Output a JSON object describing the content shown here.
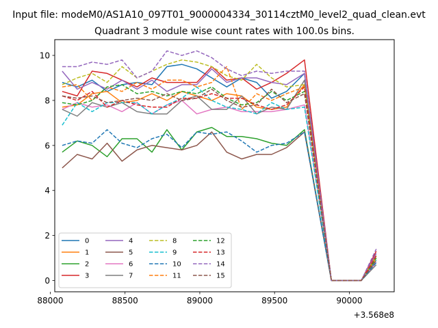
{
  "chart_data": {
    "type": "line",
    "title": "Quadrant 3 module wise count rates with 100.0s bins.",
    "suptitle": "Input file: modeM0/AS1A10_097T01_9000004334_30114cztM0_level2_quad_clean.evt",
    "xlabel": "",
    "ylabel": "",
    "x_offset_label": "+3.568e8",
    "xlim": [
      88030,
      90300
    ],
    "ylim": [
      -0.5,
      10.7
    ],
    "xticks": [
      88000,
      88500,
      89000,
      89500,
      90000
    ],
    "xtick_labels": [
      "88000",
      "88500",
      "89000",
      "89500",
      "90000"
    ],
    "yticks": [
      0,
      2,
      4,
      6,
      8,
      10
    ],
    "ytick_labels": [
      "0",
      "2",
      "4",
      "6",
      "8",
      "10"
    ],
    "grid": false,
    "legend": {
      "placement": "lower-left",
      "ncol": 4
    },
    "x": [
      88080,
      88180,
      88280,
      88380,
      88480,
      88580,
      88680,
      88780,
      88880,
      88980,
      89080,
      89180,
      89280,
      89380,
      89480,
      89580,
      89700,
      89880,
      89980,
      90080,
      90180
    ],
    "series": [
      {
        "name": "0",
        "color": "#1f77b4",
        "style": "solid",
        "values": [
          8.8,
          8.6,
          8.9,
          8.4,
          8.7,
          8.8,
          8.7,
          9.5,
          9.6,
          9.4,
          9.0,
          8.6,
          9.0,
          8.8,
          8.1,
          8.4,
          9.2,
          0,
          0,
          0,
          0.8
        ]
      },
      {
        "name": "1",
        "color": "#ff7f0e",
        "style": "solid",
        "values": [
          7.7,
          7.8,
          8.3,
          8.4,
          7.9,
          8.0,
          8.3,
          8.0,
          8.4,
          8.2,
          8.0,
          8.3,
          8.2,
          7.7,
          7.6,
          7.7,
          8.7,
          0,
          0,
          0,
          1.0
        ]
      },
      {
        "name": "2",
        "color": "#2ca02c",
        "style": "solid",
        "values": [
          5.7,
          6.2,
          6.0,
          5.5,
          6.3,
          6.3,
          5.7,
          6.7,
          5.8,
          6.6,
          6.8,
          6.4,
          6.4,
          6.3,
          6.1,
          6.0,
          6.7,
          0,
          0,
          0,
          1.1
        ]
      },
      {
        "name": "3",
        "color": "#d62728",
        "style": "solid",
        "values": [
          8.4,
          8.2,
          9.3,
          9.2,
          8.9,
          8.6,
          9.0,
          8.8,
          8.8,
          8.8,
          9.5,
          8.9,
          9.0,
          8.5,
          8.8,
          9.2,
          9.8,
          0,
          0,
          0,
          1.3
        ]
      },
      {
        "name": "4",
        "color": "#9467bd",
        "style": "solid",
        "values": [
          9.3,
          8.5,
          8.8,
          8.5,
          8.9,
          8.5,
          8.9,
          8.4,
          8.7,
          8.7,
          9.4,
          8.8,
          9.0,
          9.0,
          8.8,
          8.7,
          9.2,
          0,
          0,
          0,
          1.2
        ]
      },
      {
        "name": "5",
        "color": "#8c564b",
        "style": "solid",
        "values": [
          5.0,
          5.6,
          5.4,
          6.1,
          5.3,
          5.8,
          6.0,
          5.9,
          5.8,
          6.0,
          6.6,
          5.7,
          5.4,
          5.6,
          5.6,
          5.9,
          6.6,
          0,
          0,
          0,
          0.9
        ]
      },
      {
        "name": "6",
        "color": "#e377c2",
        "style": "solid",
        "values": [
          7.6,
          7.9,
          7.7,
          7.8,
          7.5,
          7.9,
          7.4,
          7.8,
          8.0,
          7.4,
          7.6,
          7.7,
          7.5,
          7.5,
          7.5,
          7.6,
          7.8,
          0,
          0,
          0,
          0.8
        ]
      },
      {
        "name": "7",
        "color": "#7f7f7f",
        "style": "solid",
        "values": [
          7.6,
          7.3,
          7.9,
          7.7,
          7.9,
          7.5,
          7.4,
          7.4,
          8.0,
          8.2,
          7.6,
          7.6,
          8.2,
          7.4,
          7.7,
          7.6,
          8.9,
          0,
          0,
          0,
          0.7
        ]
      },
      {
        "name": "8",
        "color": "#bcbd22",
        "style": "dashed",
        "values": [
          8.7,
          9.0,
          9.2,
          8.8,
          9.5,
          9.0,
          9.3,
          9.6,
          9.8,
          9.7,
          9.5,
          9.1,
          8.9,
          9.6,
          9.0,
          8.6,
          8.7,
          0,
          0,
          0,
          1.1
        ]
      },
      {
        "name": "9",
        "color": "#17becf",
        "style": "dashed",
        "values": [
          6.9,
          7.9,
          7.5,
          7.9,
          7.9,
          7.9,
          7.4,
          7.8,
          8.1,
          8.6,
          8.0,
          7.7,
          7.6,
          7.4,
          7.9,
          7.6,
          7.7,
          0,
          0,
          0,
          0.9
        ]
      },
      {
        "name": "10",
        "color": "#1f77b4",
        "style": "dashed",
        "values": [
          6.0,
          6.2,
          6.1,
          6.7,
          6.1,
          5.9,
          6.3,
          6.5,
          5.9,
          6.6,
          6.5,
          6.6,
          6.2,
          5.7,
          6.0,
          6.1,
          6.6,
          0,
          0,
          0,
          0.8
        ]
      },
      {
        "name": "11",
        "color": "#ff7f0e",
        "style": "dashed",
        "values": [
          8.6,
          8.7,
          8.0,
          8.6,
          8.4,
          8.8,
          8.5,
          8.9,
          8.9,
          8.6,
          8.8,
          9.5,
          7.6,
          8.3,
          8.0,
          8.3,
          8.6,
          0,
          0,
          0,
          1.1
        ]
      },
      {
        "name": "12",
        "color": "#2ca02c",
        "style": "dashed",
        "values": [
          7.9,
          7.8,
          8.0,
          8.6,
          8.7,
          8.3,
          8.4,
          8.2,
          8.4,
          8.3,
          8.6,
          8.1,
          7.8,
          7.9,
          8.4,
          8.0,
          8.4,
          0,
          0,
          0,
          1.0
        ]
      },
      {
        "name": "13",
        "color": "#d62728",
        "style": "dashed",
        "values": [
          8.2,
          8.0,
          8.4,
          7.7,
          8.0,
          7.8,
          7.7,
          7.7,
          8.1,
          8.1,
          8.3,
          8.1,
          8.1,
          7.8,
          7.6,
          7.8,
          8.6,
          0,
          0,
          0,
          1.1
        ]
      },
      {
        "name": "14",
        "color": "#9467bd",
        "style": "dashed",
        "values": [
          9.5,
          9.5,
          9.7,
          9.6,
          9.8,
          9.0,
          9.3,
          10.2,
          10.0,
          10.2,
          9.9,
          9.4,
          9.1,
          9.3,
          9.2,
          9.3,
          9.3,
          0,
          0,
          0,
          1.4
        ]
      },
      {
        "name": "15",
        "color": "#8c564b",
        "style": "dashed",
        "values": [
          8.2,
          8.1,
          8.2,
          7.9,
          8.0,
          8.1,
          8.0,
          8.3,
          8.0,
          8.1,
          8.5,
          8.0,
          7.7,
          7.8,
          8.5,
          7.9,
          8.3,
          0,
          0,
          0,
          0.9
        ]
      }
    ]
  }
}
